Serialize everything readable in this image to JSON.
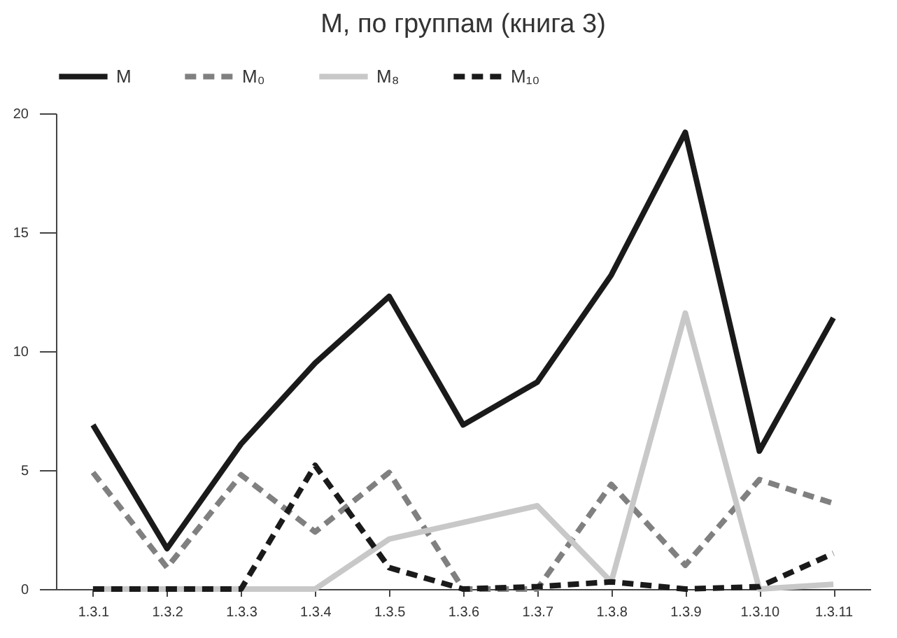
{
  "chart_data": {
    "type": "line",
    "title": "М, по группам (книга 3)",
    "categories": [
      "1.3.1",
      "1.3.2",
      "1.3.3",
      "1.3.4",
      "1.3.5",
      "1.3.6",
      "1.3.7",
      "1.3.8",
      "1.3.9",
      "1.3.10",
      "1.3.11"
    ],
    "series": [
      {
        "name": "M",
        "color": "#1a1a1a",
        "line_style": "solid",
        "values": [
          6.9,
          1.7,
          6.1,
          9.5,
          12.3,
          6.9,
          8.7,
          13.2,
          19.2,
          5.8,
          11.4
        ]
      },
      {
        "name": "M₀",
        "color": "#808080",
        "line_style": "dashed",
        "values": [
          4.9,
          0.9,
          4.8,
          2.4,
          4.9,
          0,
          0,
          4.4,
          1.0,
          4.6,
          3.6
        ]
      },
      {
        "name": "M₈",
        "color": "#c8c8c8",
        "line_style": "solid",
        "values": [
          0,
          0,
          0,
          0,
          2.1,
          2.8,
          3.5,
          0.3,
          11.6,
          0,
          0.2
        ]
      },
      {
        "name": "M₁₀",
        "color": "#1a1a1a",
        "line_style": "dashed",
        "values": [
          0,
          0,
          0,
          5.2,
          0.9,
          0,
          0.1,
          0.3,
          0,
          0.1,
          1.5
        ]
      }
    ],
    "ylim": [
      0,
      20
    ],
    "yticks": [
      0,
      5,
      10,
      15,
      20
    ],
    "grid": false,
    "legend": "top",
    "marker": "none"
  }
}
